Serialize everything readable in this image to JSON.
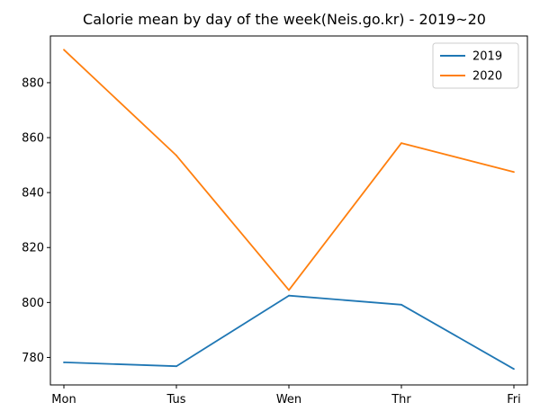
{
  "chart_data": {
    "type": "line",
    "title": "Calorie mean by day of the week(Neis.go.kr) - 2019~20",
    "xlabel": "",
    "ylabel": "",
    "categories": [
      "Mon",
      "Tus",
      "Wen",
      "Thr",
      "Fri"
    ],
    "series": [
      {
        "name": "2019",
        "color": "#1f77b4",
        "values": [
          778.2,
          776.8,
          802.5,
          799.2,
          775.8
        ]
      },
      {
        "name": "2020",
        "color": "#ff7f0e",
        "values": [
          892.0,
          853.5,
          804.5,
          858.0,
          847.5
        ]
      }
    ],
    "ylim": [
      770.0,
      897.0
    ],
    "yticks": [
      780,
      800,
      820,
      840,
      860,
      880
    ],
    "grid": false,
    "legend_position": "top-right"
  }
}
